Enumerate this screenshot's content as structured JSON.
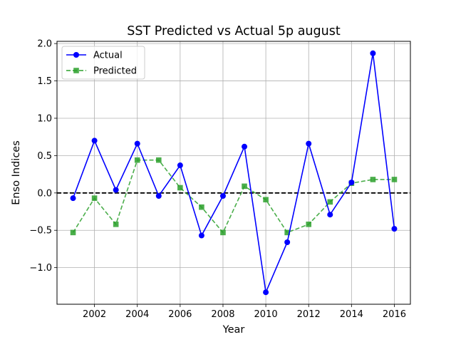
{
  "chart_data": {
    "type": "line",
    "title": "SST Predicted vs Actual 5p august",
    "xlabel": "Year",
    "ylabel": "Enso Indices",
    "x": [
      2001,
      2002,
      2003,
      2004,
      2005,
      2006,
      2007,
      2008,
      2009,
      2010,
      2011,
      2012,
      2013,
      2014,
      2015,
      2016
    ],
    "series": [
      {
        "name": "Actual",
        "values": [
          -0.07,
          0.7,
          0.04,
          0.66,
          -0.04,
          0.37,
          -0.57,
          -0.04,
          0.62,
          -1.33,
          -0.66,
          0.66,
          -0.29,
          0.14,
          1.87,
          -0.48
        ],
        "color": "#0000ff",
        "marker": "circle",
        "linestyle": "solid"
      },
      {
        "name": "Predicted",
        "values": [
          -0.53,
          -0.07,
          -0.42,
          0.44,
          0.44,
          0.07,
          -0.19,
          -0.53,
          0.09,
          -0.09,
          -0.53,
          -0.42,
          -0.12,
          0.13,
          0.18,
          0.18
        ],
        "color": "#2ca02c",
        "marker": "square",
        "linestyle": "dashed"
      }
    ],
    "xlim": [
      2000.25,
      2016.75
    ],
    "ylim": [
      -1.49,
      2.03
    ],
    "xticks": [
      2002,
      2004,
      2006,
      2008,
      2010,
      2012,
      2014,
      2016
    ],
    "xtick_labels": [
      "2002",
      "2004",
      "2006",
      "2008",
      "2010",
      "2012",
      "2014",
      "2016"
    ],
    "yticks": [
      -1.0,
      -0.5,
      0.0,
      0.5,
      1.0,
      1.5,
      2.0
    ],
    "ytick_labels": [
      "−1.0",
      "−0.5",
      "0.0",
      "0.5",
      "1.0",
      "1.5",
      "2.0"
    ],
    "reference_line": {
      "y": 0,
      "color": "#000000",
      "style": "dashed"
    },
    "grid": true,
    "legend_position": "top-left"
  }
}
